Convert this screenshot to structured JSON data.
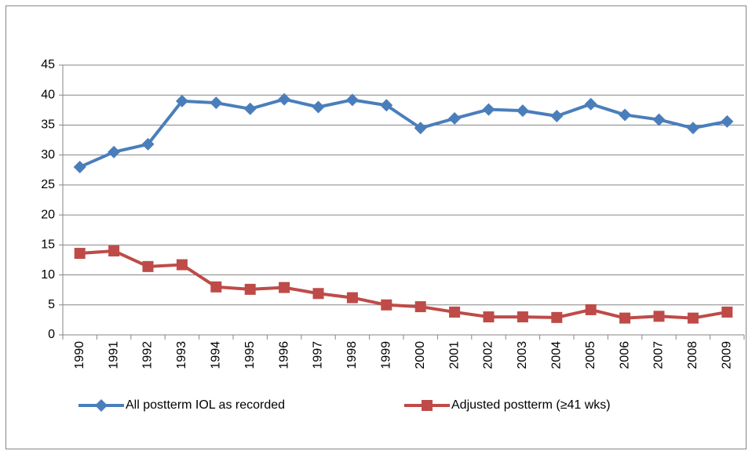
{
  "chart_data": {
    "type": "line",
    "categories": [
      "1990",
      "1991",
      "1992",
      "1993",
      "1994",
      "1995",
      "1996",
      "1997",
      "1998",
      "1999",
      "2000",
      "2001",
      "2002",
      "2003",
      "2004",
      "2005",
      "2006",
      "2007",
      "2008",
      "2009"
    ],
    "series": [
      {
        "name": "All postterm IOL as recorded",
        "color": "#4a7ebb",
        "marker": "diamond",
        "values": [
          28,
          30.5,
          31.8,
          39,
          38.7,
          37.7,
          39.3,
          38,
          39.2,
          38.3,
          34.5,
          36.1,
          37.6,
          37.4,
          36.5,
          38.5,
          36.7,
          35.9,
          34.5,
          35.6
        ]
      },
      {
        "name": "Adjusted postterm (≥41 wks)",
        "color": "#be4b48",
        "marker": "square",
        "values": [
          13.6,
          14,
          11.4,
          11.7,
          8,
          7.6,
          7.9,
          6.9,
          6.2,
          5,
          4.7,
          3.8,
          3,
          3,
          2.9,
          4.2,
          2.8,
          3.1,
          2.8,
          3.8
        ]
      }
    ],
    "ylim": [
      0,
      45
    ],
    "yticks": [
      0,
      5,
      10,
      15,
      20,
      25,
      30,
      35,
      40,
      45
    ],
    "grid": true,
    "legend": "bottom"
  }
}
